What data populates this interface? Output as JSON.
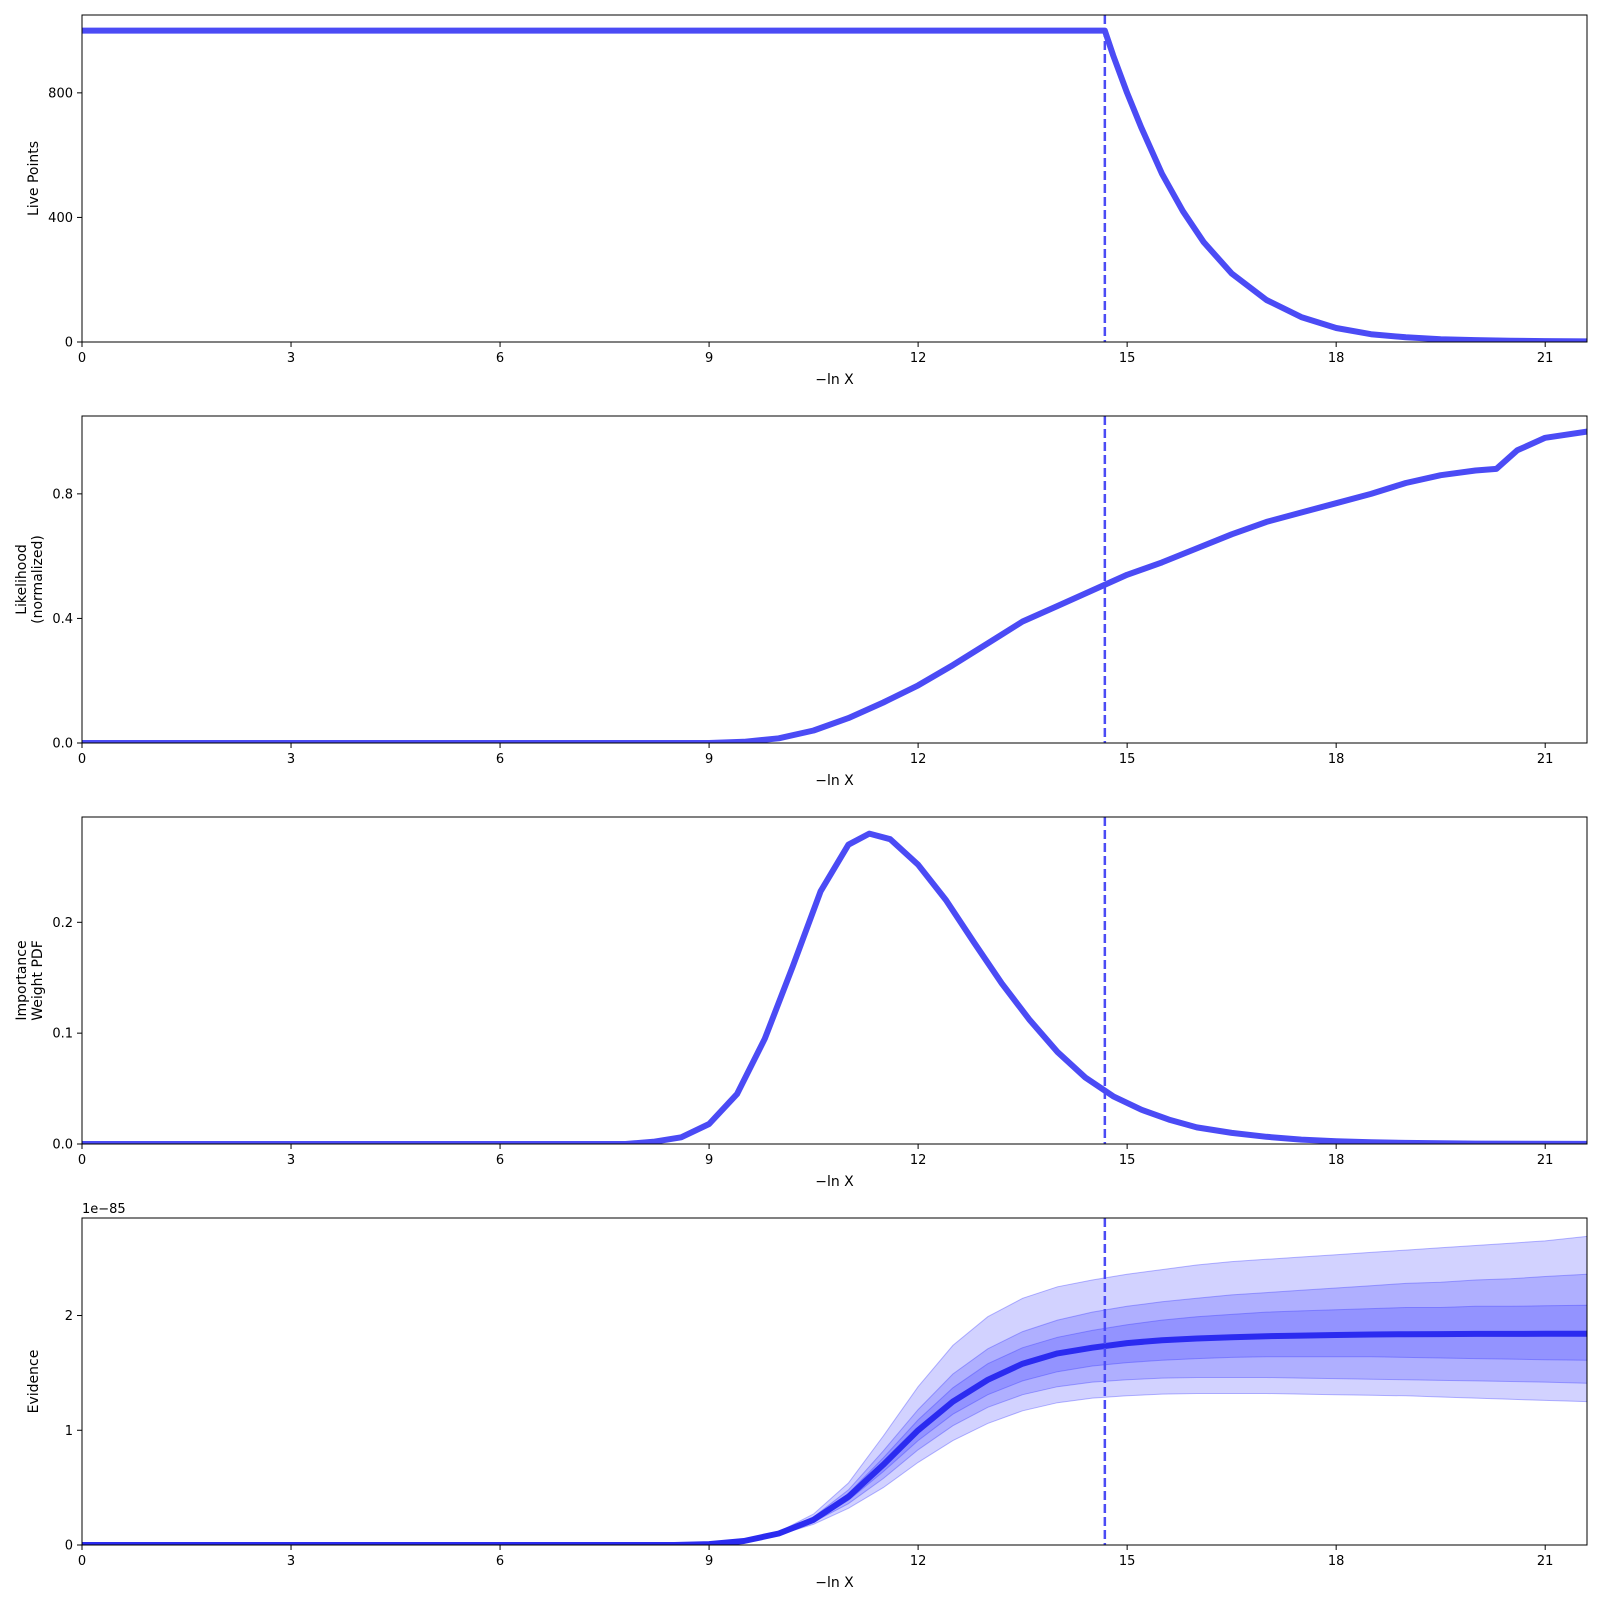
{
  "figure": {
    "line_color": "#4B4BF5",
    "evidence_color": "#2B2BF0",
    "band_color": "#3333FF",
    "marker_x": 14.68
  },
  "chart_data": [
    {
      "type": "line",
      "xlabel": "−ln X",
      "ylabel": [
        "Live Points"
      ],
      "xlim": [
        0,
        21.6
      ],
      "ylim": [
        0,
        1050
      ],
      "xticks": [
        0,
        3,
        6,
        9,
        12,
        15,
        18,
        21
      ],
      "yticks": [
        0,
        400,
        800
      ],
      "ytick_labels": [
        "0",
        "400",
        "800"
      ],
      "series": [
        {
          "x": [
            0,
            14.68,
            14.8,
            15.0,
            15.2,
            15.5,
            15.8,
            16.1,
            16.5,
            17.0,
            17.5,
            18.0,
            18.5,
            19.0,
            19.5,
            20.0,
            20.5,
            21.0,
            21.6
          ],
          "y": [
            1000,
            1000,
            920,
            800,
            690,
            540,
            420,
            320,
            220,
            135,
            80,
            45,
            25,
            15,
            9,
            6,
            4,
            3,
            2
          ]
        }
      ]
    },
    {
      "type": "line",
      "xlabel": "−ln X",
      "ylabel": [
        "Likelihood",
        "(normalized)"
      ],
      "xlim": [
        0,
        21.6
      ],
      "ylim": [
        0,
        1.05
      ],
      "xticks": [
        0,
        3,
        6,
        9,
        12,
        15,
        18,
        21
      ],
      "yticks": [
        0,
        0.4,
        0.8
      ],
      "ytick_labels": [
        "0.0",
        "0.4",
        "0.8"
      ],
      "series": [
        {
          "x": [
            0,
            9.0,
            9.5,
            10.0,
            10.5,
            11.0,
            11.5,
            12.0,
            12.5,
            13.0,
            13.5,
            14.0,
            14.5,
            15.0,
            15.5,
            16.0,
            16.5,
            17.0,
            17.5,
            18.0,
            18.5,
            19.0,
            19.5,
            20.0,
            20.3,
            20.6,
            21.0,
            21.6
          ],
          "y": [
            0,
            0,
            0.004,
            0.015,
            0.04,
            0.08,
            0.13,
            0.185,
            0.25,
            0.32,
            0.39,
            0.44,
            0.49,
            0.54,
            0.58,
            0.625,
            0.67,
            0.71,
            0.74,
            0.77,
            0.8,
            0.835,
            0.86,
            0.875,
            0.88,
            0.94,
            0.98,
            1.0
          ]
        }
      ]
    },
    {
      "type": "line",
      "xlabel": "−ln X",
      "ylabel": [
        "Importance",
        "Weight PDF"
      ],
      "xlim": [
        0,
        21.6
      ],
      "ylim": [
        0,
        0.295
      ],
      "xticks": [
        0,
        3,
        6,
        9,
        12,
        15,
        18,
        21
      ],
      "yticks": [
        0,
        0.1,
        0.2
      ],
      "ytick_labels": [
        "0.0",
        "0.1",
        "0.2"
      ],
      "series": [
        {
          "x": [
            0,
            7.8,
            8.2,
            8.6,
            9.0,
            9.4,
            9.8,
            10.2,
            10.6,
            11.0,
            11.3,
            11.6,
            12.0,
            12.4,
            12.8,
            13.2,
            13.6,
            14.0,
            14.4,
            14.8,
            15.2,
            15.6,
            16.0,
            16.5,
            17.0,
            17.5,
            18.0,
            18.5,
            19.0,
            19.5,
            20.0,
            21.6
          ],
          "y": [
            0,
            0,
            0.002,
            0.006,
            0.018,
            0.045,
            0.095,
            0.16,
            0.228,
            0.27,
            0.28,
            0.275,
            0.252,
            0.22,
            0.182,
            0.145,
            0.112,
            0.083,
            0.06,
            0.043,
            0.031,
            0.022,
            0.015,
            0.01,
            0.0065,
            0.004,
            0.0025,
            0.0015,
            0.001,
            0.0006,
            0.0004,
            0.0001
          ]
        }
      ]
    },
    {
      "type": "area",
      "xlabel": "−ln X",
      "ylabel": [
        "Evidence"
      ],
      "offset_text": "1e−85",
      "xlim": [
        0,
        21.6
      ],
      "ylim": [
        0,
        2.85
      ],
      "xticks": [
        0,
        3,
        6,
        9,
        12,
        15,
        18,
        21
      ],
      "yticks": [
        0,
        1,
        2
      ],
      "ytick_labels": [
        "0",
        "1",
        "2"
      ],
      "x": [
        0,
        8.5,
        9.0,
        9.5,
        10.0,
        10.5,
        11.0,
        11.5,
        12.0,
        12.5,
        13.0,
        13.5,
        14.0,
        14.5,
        15.0,
        15.5,
        16.0,
        16.5,
        17.0,
        17.5,
        18.0,
        18.5,
        19.0,
        19.5,
        20.0,
        20.5,
        21.0,
        21.6
      ],
      "series": [
        {
          "y": [
            0,
            0,
            0.008,
            0.035,
            0.1,
            0.22,
            0.42,
            0.7,
            1.0,
            1.25,
            1.44,
            1.58,
            1.67,
            1.72,
            1.76,
            1.785,
            1.8,
            1.81,
            1.82,
            1.825,
            1.83,
            1.835,
            1.837,
            1.838,
            1.84,
            1.84,
            1.842,
            1.842
          ]
        }
      ],
      "bands": [
        {
          "upper": [
            0,
            0,
            0.008,
            0.038,
            0.115,
            0.27,
            0.54,
            0.95,
            1.38,
            1.74,
            1.99,
            2.15,
            2.25,
            2.31,
            2.36,
            2.4,
            2.44,
            2.47,
            2.49,
            2.51,
            2.53,
            2.55,
            2.57,
            2.59,
            2.61,
            2.63,
            2.65,
            2.69
          ],
          "lower": [
            0,
            0,
            0.007,
            0.032,
            0.088,
            0.18,
            0.32,
            0.5,
            0.72,
            0.91,
            1.06,
            1.17,
            1.24,
            1.28,
            1.3,
            1.315,
            1.32,
            1.32,
            1.32,
            1.315,
            1.31,
            1.305,
            1.3,
            1.29,
            1.28,
            1.27,
            1.26,
            1.25
          ]
        },
        {
          "upper": [
            0,
            0,
            0.008,
            0.036,
            0.108,
            0.245,
            0.48,
            0.82,
            1.18,
            1.49,
            1.71,
            1.86,
            1.96,
            2.03,
            2.08,
            2.12,
            2.15,
            2.18,
            2.2,
            2.22,
            2.24,
            2.26,
            2.28,
            2.29,
            2.31,
            2.32,
            2.34,
            2.36
          ],
          "lower": [
            0,
            0,
            0.007,
            0.033,
            0.093,
            0.2,
            0.36,
            0.58,
            0.83,
            1.04,
            1.2,
            1.31,
            1.38,
            1.42,
            1.44,
            1.455,
            1.46,
            1.46,
            1.46,
            1.455,
            1.45,
            1.445,
            1.44,
            1.435,
            1.43,
            1.425,
            1.42,
            1.41
          ]
        },
        {
          "upper": [
            0,
            0,
            0.008,
            0.035,
            0.104,
            0.232,
            0.45,
            0.76,
            1.09,
            1.37,
            1.58,
            1.72,
            1.81,
            1.87,
            1.92,
            1.96,
            1.99,
            2.01,
            2.03,
            2.04,
            2.05,
            2.06,
            2.07,
            2.07,
            2.08,
            2.08,
            2.085,
            2.09
          ],
          "lower": [
            0,
            0,
            0.008,
            0.034,
            0.096,
            0.208,
            0.39,
            0.64,
            0.91,
            1.14,
            1.31,
            1.43,
            1.51,
            1.56,
            1.59,
            1.61,
            1.625,
            1.635,
            1.64,
            1.64,
            1.64,
            1.64,
            1.635,
            1.63,
            1.625,
            1.62,
            1.615,
            1.61
          ]
        }
      ]
    }
  ]
}
